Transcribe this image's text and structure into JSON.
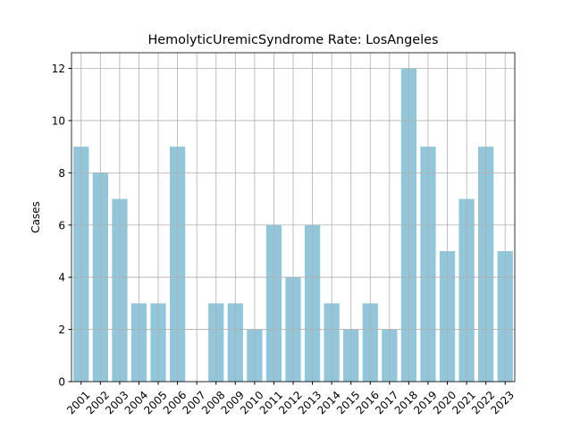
{
  "chart_data": {
    "type": "bar",
    "title": "HemolyticUremicSyndrome Rate: LosAngeles",
    "ylabel": "Cases",
    "categories": [
      "2001",
      "2002",
      "2003",
      "2004",
      "2005",
      "2006",
      "2007",
      "2008",
      "2009",
      "2010",
      "2011",
      "2012",
      "2013",
      "2014",
      "2015",
      "2016",
      "2017",
      "2018",
      "2019",
      "2020",
      "2021",
      "2022",
      "2023"
    ],
    "values": [
      9,
      8,
      7,
      3,
      3,
      9,
      0,
      3,
      3,
      2,
      6,
      4,
      6,
      3,
      2,
      3,
      2,
      12,
      9,
      5,
      7,
      9,
      5
    ],
    "color": "#92c6da",
    "ylim": [
      0,
      12.6
    ],
    "yticks": [
      0,
      2,
      4,
      6,
      8,
      10,
      12
    ],
    "grid": true
  }
}
